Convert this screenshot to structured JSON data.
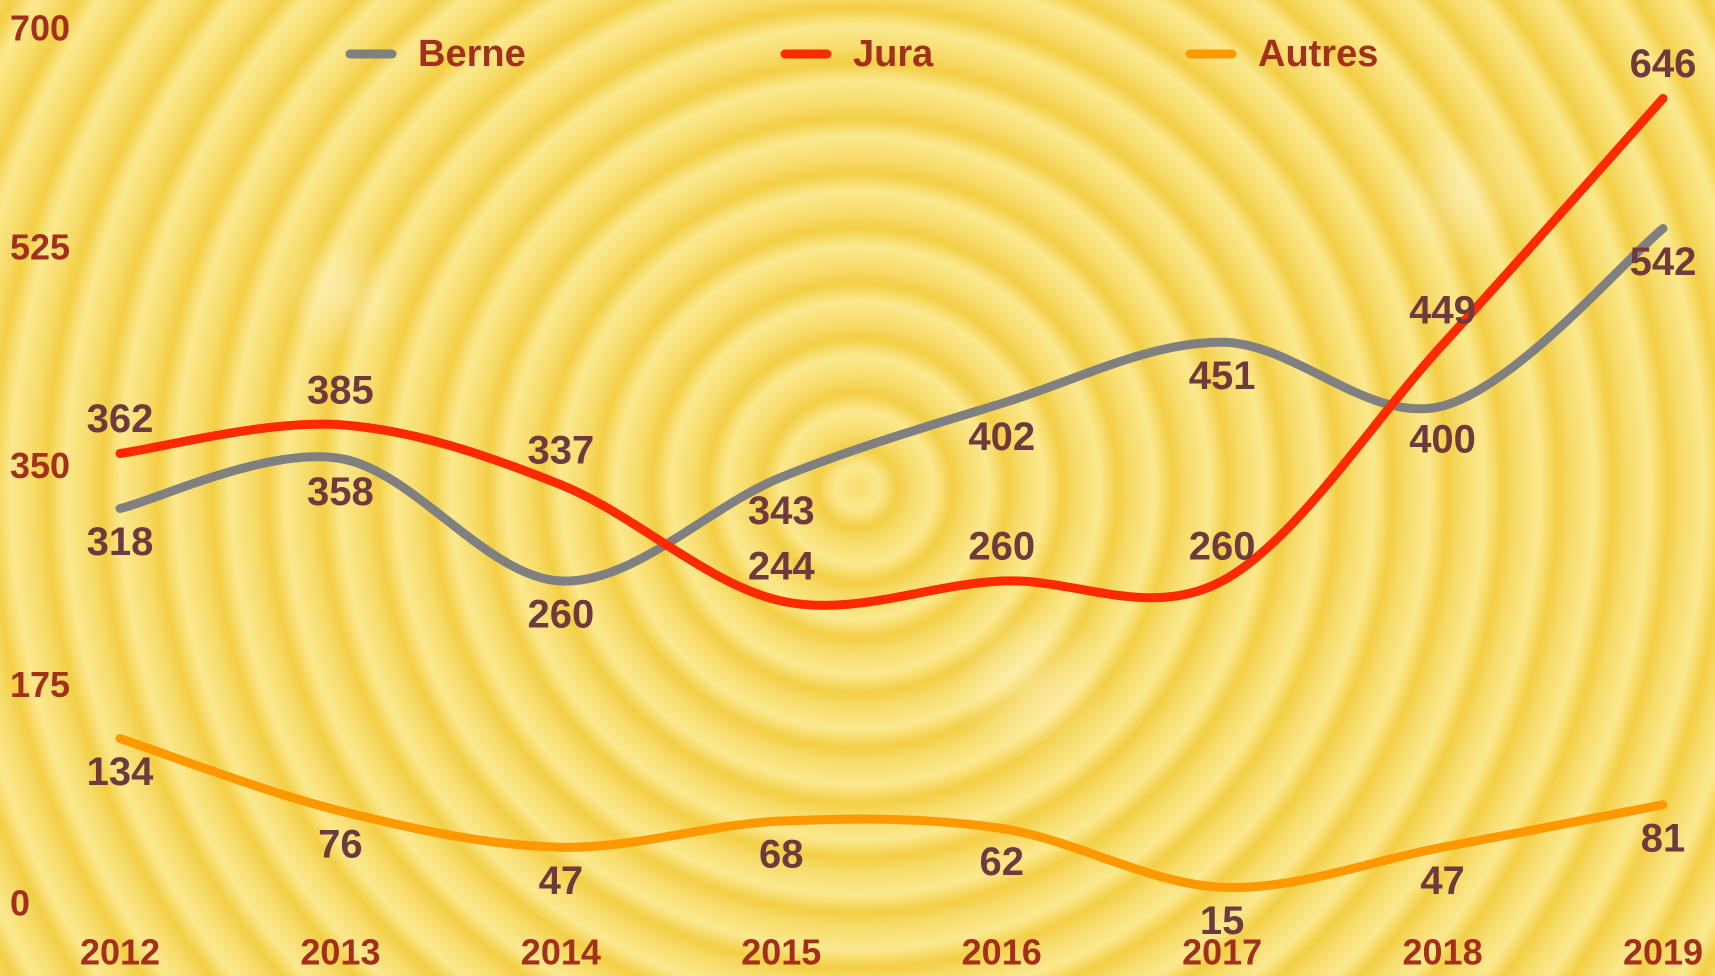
{
  "chart_data": {
    "type": "line",
    "categories": [
      "2012",
      "2013",
      "2014",
      "2015",
      "2016",
      "2017",
      "2018",
      "2019"
    ],
    "series": [
      {
        "name": "Berne",
        "color": "#808080",
        "values": [
          318,
          358,
          260,
          343,
          402,
          451,
          400,
          542
        ]
      },
      {
        "name": "Jura",
        "color": "#ff2a00",
        "values": [
          362,
          385,
          337,
          244,
          260,
          260,
          449,
          646
        ]
      },
      {
        "name": "Autres",
        "color": "#ff9900",
        "values": [
          134,
          76,
          47,
          68,
          62,
          15,
          47,
          81
        ]
      }
    ],
    "ylim": [
      0,
      700
    ],
    "yticks": [
      0,
      175,
      350,
      525,
      700
    ],
    "grid": false,
    "legend": "top"
  }
}
